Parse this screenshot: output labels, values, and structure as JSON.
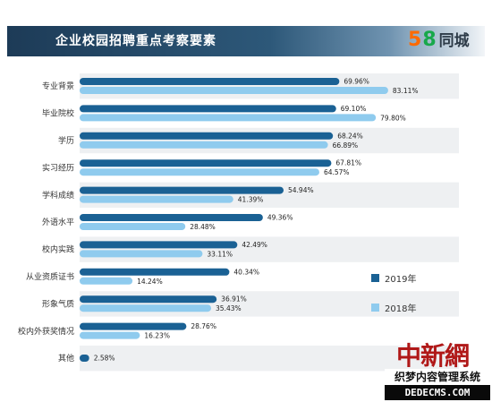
{
  "header": {
    "title": "企业校园招聘重点考察要素"
  },
  "logo": {
    "num_a": "5",
    "num_b": "8",
    "text": "同城"
  },
  "colors": {
    "series_2019": "#1a6194",
    "series_2018": "#8fcbee",
    "row_shade": "#eef0f2"
  },
  "chart_data": {
    "type": "bar",
    "orientation": "horizontal",
    "title": "企业校园招聘重点考察要素",
    "categories": [
      "专业背景",
      "毕业院校",
      "学历",
      "实习经历",
      "学科成绩",
      "外语水平",
      "校内实践",
      "从业资质证书",
      "形象气质",
      "校内外获奖情况",
      "其他"
    ],
    "series": [
      {
        "name": "2019年",
        "values": [
          69.96,
          69.1,
          68.24,
          67.81,
          54.94,
          49.36,
          42.49,
          40.34,
          36.91,
          28.76,
          2.58
        ],
        "labels": [
          "69.96%",
          "69.10%",
          "68.24%",
          "67.81%",
          "54.94%",
          "49.36%",
          "42.49%",
          "40.34%",
          "36.91%",
          "28.76%",
          "2.58%"
        ]
      },
      {
        "name": "2018年",
        "values": [
          83.11,
          79.8,
          66.89,
          64.57,
          41.39,
          28.48,
          33.11,
          14.24,
          35.43,
          16.23,
          null
        ],
        "labels": [
          "83.11%",
          "79.80%",
          "66.89%",
          "64.57%",
          "41.39%",
          "28.48%",
          "33.11%",
          "14.24%",
          "35.43%",
          "16.23%",
          null
        ]
      }
    ],
    "xlim": [
      0,
      100
    ],
    "grid": false,
    "legend_position": "right"
  },
  "watermark": {
    "main": "中新網",
    "sub": "织梦内容管理系统",
    "url": "DEDECMS.COM"
  }
}
